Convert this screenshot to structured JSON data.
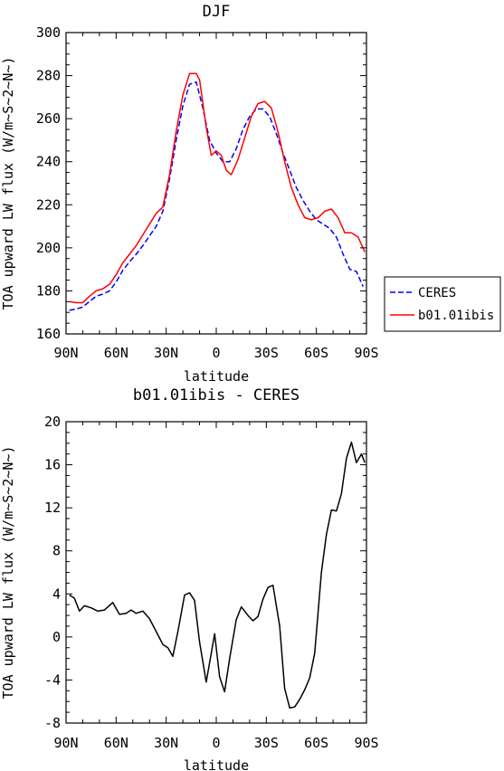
{
  "chart_data": [
    {
      "type": "line",
      "title": "DJF",
      "xlabel": "latitude",
      "ylabel": "TOA upward LW flux (W/m~S~2~N~)",
      "x_tick_labels": [
        "90N",
        "60N",
        "30N",
        "0",
        "30S",
        "60S",
        "90S"
      ],
      "x_ticks": [
        90,
        60,
        30,
        0,
        -30,
        -60,
        -90
      ],
      "xlim": [
        90,
        -90
      ],
      "y_ticks": [
        160,
        180,
        200,
        220,
        240,
        260,
        280,
        300
      ],
      "ylim": [
        160,
        300
      ],
      "legend_position": "right",
      "series": [
        {
          "name": "CERES",
          "color": "#0000ff",
          "dash": "dashed",
          "x": [
            88,
            84,
            80,
            76,
            72,
            68,
            64,
            60,
            56,
            52,
            48,
            44,
            40,
            36,
            32,
            28,
            24,
            20,
            16,
            12,
            8,
            4,
            0,
            -4,
            -8,
            -12,
            -16,
            -20,
            -24,
            -28,
            -32,
            -36,
            -40,
            -44,
            -48,
            -52,
            -56,
            -60,
            -64,
            -68,
            -72,
            -76,
            -80,
            -84,
            -88
          ],
          "y": [
            171,
            171.5,
            172.5,
            175,
            177.5,
            178.5,
            180,
            184,
            189.5,
            193.5,
            197,
            201,
            205.5,
            210,
            217,
            232,
            250,
            266,
            276,
            277,
            265,
            250,
            244,
            240,
            240,
            246,
            255,
            261,
            264.5,
            264.5,
            261,
            253,
            244,
            236,
            228,
            222,
            217,
            213,
            211,
            209,
            205,
            197,
            190,
            189,
            182
          ]
        },
        {
          "name": "b01.01ibis",
          "color": "#ff0000",
          "dash": "solid",
          "x": [
            88,
            84,
            80,
            76,
            72,
            68,
            64,
            60,
            56,
            52,
            48,
            44,
            40,
            36,
            32,
            28,
            24,
            20,
            16,
            12,
            10,
            6,
            3,
            0,
            -3,
            -6,
            -9,
            -13,
            -17,
            -21,
            -25,
            -29,
            -33,
            -37,
            -41,
            -45,
            -49,
            -53,
            -57,
            -61,
            -65,
            -69,
            -73,
            -77,
            -81,
            -85,
            -89
          ],
          "y": [
            175,
            174.5,
            174.5,
            177.5,
            180,
            181,
            183,
            187.5,
            193,
            197,
            201,
            206,
            211,
            216,
            219,
            234,
            254,
            271,
            281,
            281,
            278,
            256,
            243,
            245,
            243,
            236,
            234,
            241,
            251,
            261,
            267,
            268,
            265,
            254,
            240,
            228,
            220,
            214,
            213,
            214,
            217,
            218,
            214,
            207,
            207,
            205,
            198
          ]
        }
      ]
    },
    {
      "type": "line",
      "title": "b01.01ibis - CERES",
      "xlabel": "latitude",
      "ylabel": "TOA upward LW flux (W/m~S~2~N~)",
      "x_tick_labels": [
        "90N",
        "60N",
        "30N",
        "0",
        "30S",
        "60S",
        "90S"
      ],
      "x_ticks": [
        90,
        60,
        30,
        0,
        -30,
        -60,
        -90
      ],
      "xlim": [
        90,
        -90
      ],
      "y_ticks": [
        -8,
        -4,
        0,
        4,
        8,
        12,
        16,
        20
      ],
      "ylim": [
        -8,
        20
      ],
      "series": [
        {
          "color": "#000000",
          "dash": "solid",
          "x": [
            88,
            85,
            82,
            79,
            75,
            71,
            67,
            62,
            58,
            54,
            51,
            48,
            44,
            40,
            36,
            32,
            29,
            26,
            23,
            19,
            16,
            13,
            10,
            6,
            3,
            1,
            -2,
            -5,
            -8,
            -12,
            -15,
            -19,
            -22,
            -25,
            -28,
            -31,
            -34,
            -38,
            -41,
            -44,
            -47,
            -50,
            -53,
            -56,
            -59,
            -63,
            -66,
            -69,
            -72,
            -75,
            -78,
            -81,
            -84,
            -87,
            -89
          ],
          "y": [
            3.9,
            3.6,
            2.4,
            2.9,
            2.7,
            2.4,
            2.5,
            3.2,
            2.1,
            2.2,
            2.5,
            2.2,
            2.4,
            1.7,
            0.5,
            -0.7,
            -1.0,
            -1.8,
            0.5,
            3.9,
            4.1,
            3.4,
            -0.5,
            -4.2,
            -1.5,
            0.3,
            -3.7,
            -5.1,
            -2.0,
            1.6,
            2.8,
            2.0,
            1.5,
            1.9,
            3.5,
            4.6,
            4.8,
            1.0,
            -4.8,
            -6.6,
            -6.5,
            -5.8,
            -4.9,
            -3.8,
            -1.5,
            6.0,
            9.5,
            11.8,
            11.7,
            13.3,
            16.6,
            18.1,
            16.2,
            17.0,
            16.2
          ]
        }
      ]
    }
  ]
}
